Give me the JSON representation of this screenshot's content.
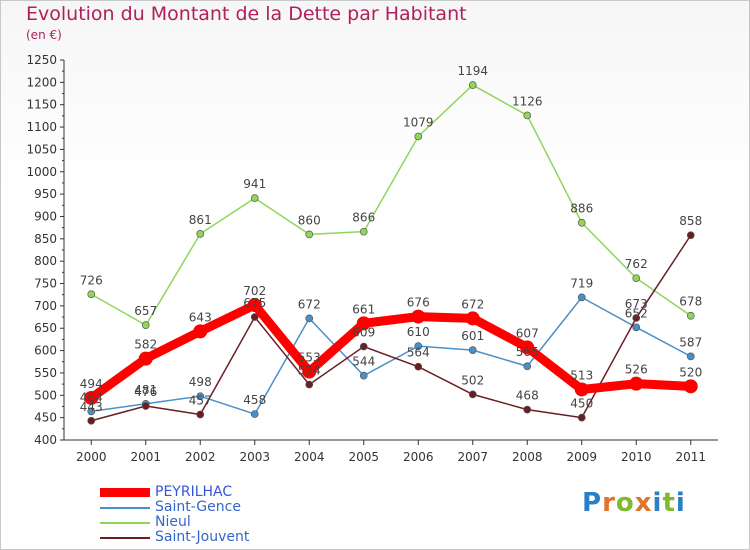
{
  "header": {
    "title": "Evolution du Montant de la Dette par Habitant",
    "subtitle": "(en €)"
  },
  "logo": {
    "text": "Proxiti",
    "letters": [
      "P",
      "r",
      "o",
      "x",
      "i",
      "t",
      "i"
    ],
    "letter_colors": [
      "#2a7fc9",
      "#e0742a",
      "#7fb92c",
      "#e0742a",
      "#2a7fc9",
      "#7fb92c",
      "#2a7fc9"
    ]
  },
  "chart_data": {
    "type": "line",
    "title": "Evolution du Montant de la Dette par Habitant",
    "subtitle": "(en €)",
    "xlabel": "",
    "ylabel": "",
    "ylim": [
      400,
      1250
    ],
    "ytick_step": 50,
    "grid": false,
    "legend_position": "bottom-left",
    "categories": [
      "2000",
      "2001",
      "2002",
      "2003",
      "2004",
      "2005",
      "2006",
      "2007",
      "2008",
      "2009",
      "2010",
      "2011"
    ],
    "y_ticks": [
      "400",
      "450",
      "500",
      "550",
      "600",
      "650",
      "700",
      "750",
      "800",
      "850",
      "900",
      "950",
      "1000",
      "1050",
      "1100",
      "1150",
      "1200",
      "1250"
    ],
    "series": [
      {
        "name": "PEYRILHAC",
        "color": "#ff0000",
        "emphasis": true,
        "values": [
          494,
          582,
          643,
          702,
          553,
          661,
          676,
          672,
          607,
          513,
          526,
          520
        ],
        "labels": [
          "494",
          "582",
          "643",
          "702",
          "553",
          "661",
          "676",
          "672",
          "607",
          "513",
          "526",
          "520"
        ]
      },
      {
        "name": "Saint-Gence",
        "color": "#4a90c8",
        "emphasis": false,
        "values": [
          464,
          481,
          498,
          458,
          672,
          544,
          610,
          601,
          565,
          719,
          652,
          587
        ],
        "labels": [
          "464",
          "481",
          "498",
          "458",
          "672",
          "544",
          "610",
          "601",
          "565",
          "719",
          "652",
          "587"
        ]
      },
      {
        "name": "Nieul",
        "color": "#8fd65a",
        "emphasis": false,
        "values": [
          726,
          657,
          861,
          941,
          860,
          866,
          1079,
          1194,
          1126,
          886,
          762,
          678
        ],
        "labels": [
          "726",
          "657",
          "861",
          "941",
          "860",
          "866",
          "1079",
          "1194",
          "1126",
          "886",
          "762",
          "678"
        ]
      },
      {
        "name": "Saint-Jouvent",
        "color": "#6b1e22",
        "emphasis": false,
        "values": [
          443,
          476,
          457,
          675,
          524,
          609,
          564,
          502,
          468,
          450,
          673,
          858
        ],
        "labels": [
          "443",
          "476",
          "457",
          "675",
          "524",
          "609",
          "564",
          "502",
          "468",
          "450",
          "673",
          "858"
        ]
      }
    ]
  }
}
